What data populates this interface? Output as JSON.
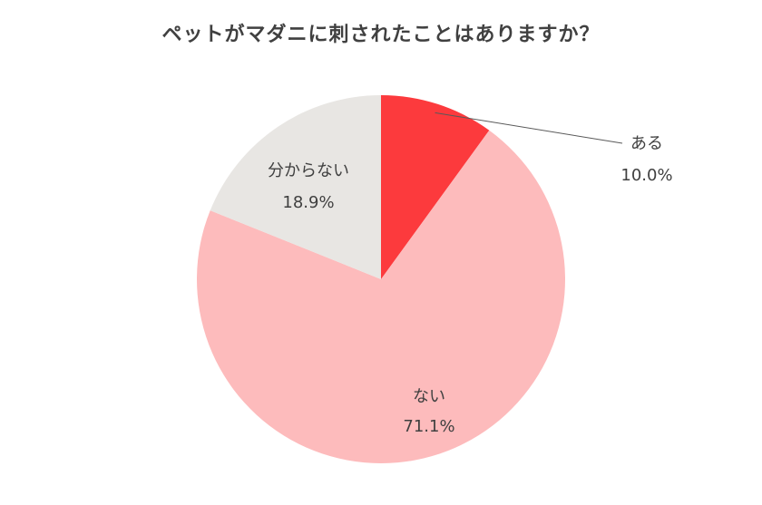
{
  "chart_data": {
    "type": "pie",
    "title": "ペットがマダニに刺されたことはありますか？",
    "slices": [
      {
        "label": "ある",
        "value": 10.0,
        "value_label": "10.0%",
        "color": "#fc3a3d"
      },
      {
        "label": "ない",
        "value": 71.1,
        "value_label": "71.1%",
        "color": "#fdbbbc"
      },
      {
        "label": "分からない",
        "value": 18.9,
        "value_label": "18.9%",
        "color": "#e8e6e3"
      }
    ],
    "start": "12 o'clock",
    "direction": "clockwise"
  }
}
